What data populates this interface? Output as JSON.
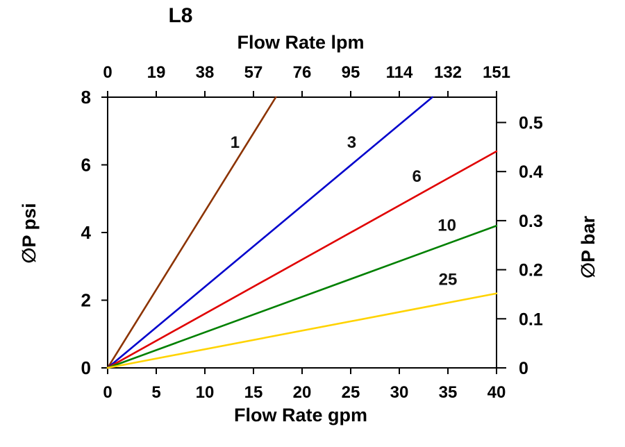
{
  "chart_data": {
    "type": "line",
    "title": "L8",
    "top_axis": {
      "label": "Flow Rate lpm",
      "tick_labels": [
        "0",
        "19",
        "38",
        "57",
        "76",
        "95",
        "114",
        "132",
        "151"
      ]
    },
    "bottom_axis": {
      "label": "Flow Rate gpm",
      "ticks": [
        0,
        5,
        10,
        15,
        20,
        25,
        30,
        35,
        40
      ],
      "range": [
        0,
        40
      ]
    },
    "left_axis": {
      "label": "∅P psi",
      "ticks": [
        0,
        2,
        4,
        6,
        8
      ],
      "range": [
        0,
        8
      ]
    },
    "right_axis": {
      "label": "∅P bar",
      "ticks": [
        0,
        0.1,
        0.2,
        0.3,
        0.4,
        0.5
      ],
      "range": [
        0,
        0.5516
      ]
    },
    "series": [
      {
        "name": "1",
        "color": "#8C3301",
        "points": [
          [
            0,
            0
          ],
          [
            17.3,
            8
          ]
        ],
        "label_at": [
          13.1,
          6.5
        ]
      },
      {
        "name": "3",
        "color": "#0000CC",
        "points": [
          [
            0,
            0
          ],
          [
            33.4,
            8
          ]
        ],
        "label_at": [
          25.1,
          6.5
        ]
      },
      {
        "name": "6",
        "color": "#E00000",
        "points": [
          [
            0,
            0
          ],
          [
            40,
            6.4
          ]
        ],
        "label_at": [
          31.8,
          5.5
        ]
      },
      {
        "name": "10",
        "color": "#008000",
        "points": [
          [
            0,
            0
          ],
          [
            40,
            4.2
          ]
        ],
        "label_at": [
          34.9,
          4.05
        ]
      },
      {
        "name": "25",
        "color": "#FFD300",
        "points": [
          [
            0,
            0
          ],
          [
            40,
            2.2
          ]
        ],
        "label_at": [
          35.0,
          2.45
        ]
      }
    ]
  }
}
